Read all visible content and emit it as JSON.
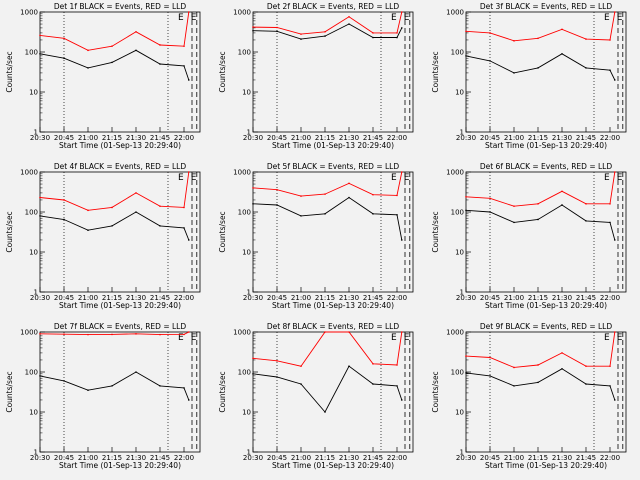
{
  "colors": {
    "events": "#000000",
    "lld": "#ff0000",
    "background": "#f2f2f2"
  },
  "chart_data": [
    {
      "type": "line",
      "title": "Det 1f BLACK = Events, RED = LLD",
      "xlabel": "Start Time (01-Sep-13 20:29:40)",
      "ylabel": "Counts/sec",
      "yscale": "log",
      "ylim": [
        1,
        1000
      ],
      "xticks": [
        "20:30",
        "20:45",
        "21:00",
        "21:15",
        "21:30",
        "21:45",
        "22:00"
      ],
      "yticks": [
        "1",
        "10",
        "100",
        "1000"
      ],
      "markers": [
        {
          "label": "E",
          "time": "21:58"
        },
        {
          "label": "E",
          "time": "22:06"
        }
      ],
      "dotted_lines": [
        "20:45",
        "21:50"
      ],
      "dashed_lines": [
        "22:05",
        "22:08"
      ],
      "series": [
        {
          "color": "#000000",
          "x": [
            "20:30",
            "20:45",
            "21:00",
            "21:15",
            "21:30",
            "21:45",
            "22:00",
            "22:03"
          ],
          "values": [
            90,
            70,
            40,
            55,
            110,
            50,
            45,
            20
          ]
        },
        {
          "color": "#ff0000",
          "x": [
            "20:30",
            "20:45",
            "21:00",
            "21:15",
            "21:30",
            "21:45",
            "22:00",
            "22:03"
          ],
          "values": [
            260,
            220,
            110,
            140,
            320,
            150,
            140,
            1000
          ]
        }
      ]
    },
    {
      "type": "line",
      "title": "Det 2f BLACK = Events, RED = LLD",
      "xlabel": "Start Time (01-Sep-13 20:29:40)",
      "ylabel": "Counts/sec",
      "yscale": "log",
      "ylim": [
        1,
        1000
      ],
      "xticks": [
        "20:30",
        "20:45",
        "21:00",
        "21:15",
        "21:30",
        "21:45",
        "22:00"
      ],
      "yticks": [
        "1",
        "10",
        "100",
        "1000"
      ],
      "markers": [
        {
          "label": "E",
          "time": "21:58"
        },
        {
          "label": "E",
          "time": "22:06"
        }
      ],
      "dotted_lines": [
        "20:45",
        "21:50"
      ],
      "dashed_lines": [
        "22:05",
        "22:08"
      ],
      "series": [
        {
          "color": "#000000",
          "x": [
            "20:30",
            "20:45",
            "21:00",
            "21:15",
            "21:30",
            "21:45",
            "22:00",
            "22:03"
          ],
          "values": [
            340,
            330,
            210,
            250,
            500,
            230,
            230,
            400
          ]
        },
        {
          "color": "#ff0000",
          "x": [
            "20:30",
            "20:45",
            "21:00",
            "21:15",
            "21:30",
            "21:45",
            "22:00",
            "22:03"
          ],
          "values": [
            420,
            410,
            280,
            320,
            760,
            300,
            300,
            1000
          ]
        }
      ]
    },
    {
      "type": "line",
      "title": "Det 3f BLACK = Events, RED = LLD",
      "xlabel": "Start Time (01-Sep-13 20:29:40)",
      "ylabel": "Counts/sec",
      "yscale": "log",
      "ylim": [
        1,
        1000
      ],
      "xticks": [
        "20:30",
        "20:45",
        "21:00",
        "21:15",
        "21:30",
        "21:45",
        "22:00"
      ],
      "yticks": [
        "1",
        "10",
        "100",
        "1000"
      ],
      "markers": [
        {
          "label": "E",
          "time": "21:58"
        },
        {
          "label": "E",
          "time": "22:06"
        }
      ],
      "dotted_lines": [
        "20:45",
        "21:50"
      ],
      "dashed_lines": [
        "22:05",
        "22:08"
      ],
      "series": [
        {
          "color": "#000000",
          "x": [
            "20:30",
            "20:45",
            "21:00",
            "21:15",
            "21:30",
            "21:45",
            "22:00",
            "22:03"
          ],
          "values": [
            80,
            60,
            30,
            40,
            90,
            40,
            35,
            20
          ]
        },
        {
          "color": "#ff0000",
          "x": [
            "20:30",
            "20:45",
            "21:00",
            "21:15",
            "21:30",
            "21:45",
            "22:00",
            "22:03"
          ],
          "values": [
            330,
            300,
            190,
            220,
            370,
            210,
            200,
            1000
          ]
        }
      ]
    },
    {
      "type": "line",
      "title": "Det 4f BLACK = Events, RED = LLD",
      "xlabel": "Start Time (01-Sep-13 20:29:40)",
      "ylabel": "Counts/sec",
      "yscale": "log",
      "ylim": [
        1,
        1000
      ],
      "xticks": [
        "20:30",
        "20:45",
        "21:00",
        "21:15",
        "21:30",
        "21:45",
        "22:00"
      ],
      "yticks": [
        "1",
        "10",
        "100",
        "1000"
      ],
      "markers": [
        {
          "label": "E",
          "time": "21:58"
        },
        {
          "label": "E",
          "time": "22:06"
        }
      ],
      "dotted_lines": [
        "20:45",
        "21:50"
      ],
      "dashed_lines": [
        "22:05",
        "22:08"
      ],
      "series": [
        {
          "color": "#000000",
          "x": [
            "20:30",
            "20:45",
            "21:00",
            "21:15",
            "21:30",
            "21:45",
            "22:00",
            "22:03"
          ],
          "values": [
            80,
            65,
            35,
            45,
            100,
            45,
            40,
            20
          ]
        },
        {
          "color": "#ff0000",
          "x": [
            "20:30",
            "20:45",
            "21:00",
            "21:15",
            "21:30",
            "21:45",
            "22:00",
            "22:03"
          ],
          "values": [
            230,
            200,
            110,
            130,
            300,
            140,
            130,
            1000
          ]
        }
      ]
    },
    {
      "type": "line",
      "title": "Det 5f BLACK = Events, RED = LLD",
      "xlabel": "Start Time (01-Sep-13 20:29:40)",
      "ylabel": "Counts/sec",
      "yscale": "log",
      "ylim": [
        1,
        1000
      ],
      "xticks": [
        "20:30",
        "20:45",
        "21:00",
        "21:15",
        "21:30",
        "21:45",
        "22:00"
      ],
      "yticks": [
        "1",
        "10",
        "100",
        "1000"
      ],
      "markers": [
        {
          "label": "E",
          "time": "21:58"
        },
        {
          "label": "E",
          "time": "22:06"
        }
      ],
      "dotted_lines": [
        "20:45",
        "21:50"
      ],
      "dashed_lines": [
        "22:05",
        "22:08"
      ],
      "series": [
        {
          "color": "#000000",
          "x": [
            "20:30",
            "20:45",
            "21:00",
            "21:15",
            "21:30",
            "21:45",
            "22:00",
            "22:03"
          ],
          "values": [
            160,
            150,
            80,
            90,
            230,
            90,
            85,
            20
          ]
        },
        {
          "color": "#ff0000",
          "x": [
            "20:30",
            "20:45",
            "21:00",
            "21:15",
            "21:30",
            "21:45",
            "22:00",
            "22:03"
          ],
          "values": [
            400,
            360,
            250,
            280,
            520,
            270,
            260,
            1000
          ]
        }
      ]
    },
    {
      "type": "line",
      "title": "Det 6f BLACK = Events, RED = LLD",
      "xlabel": "Start Time (01-Sep-13 20:29:40)",
      "ylabel": "Counts/sec",
      "yscale": "log",
      "ylim": [
        1,
        1000
      ],
      "xticks": [
        "20:30",
        "20:45",
        "21:00",
        "21:15",
        "21:30",
        "21:45",
        "22:00"
      ],
      "yticks": [
        "1",
        "10",
        "100",
        "1000"
      ],
      "markers": [
        {
          "label": "E",
          "time": "21:58"
        },
        {
          "label": "E",
          "time": "22:06"
        }
      ],
      "dotted_lines": [
        "20:45",
        "21:50"
      ],
      "dashed_lines": [
        "22:05",
        "22:08"
      ],
      "series": [
        {
          "color": "#000000",
          "x": [
            "20:30",
            "20:45",
            "21:00",
            "21:15",
            "21:30",
            "21:45",
            "22:00",
            "22:03"
          ],
          "values": [
            110,
            100,
            55,
            65,
            150,
            60,
            55,
            20
          ]
        },
        {
          "color": "#ff0000",
          "x": [
            "20:30",
            "20:45",
            "21:00",
            "21:15",
            "21:30",
            "21:45",
            "22:00",
            "22:03"
          ],
          "values": [
            240,
            220,
            140,
            160,
            330,
            160,
            160,
            1000
          ]
        }
      ]
    },
    {
      "type": "line",
      "title": "Det 7f BLACK = Events, RED = LLD",
      "xlabel": "Start Time (01-Sep-13 20:29:40)",
      "ylabel": "Counts/sec",
      "yscale": "log",
      "ylim": [
        1,
        1000
      ],
      "xticks": [
        "20:30",
        "20:45",
        "21:00",
        "21:15",
        "21:30",
        "21:45",
        "22:00"
      ],
      "yticks": [
        "1",
        "10",
        "100",
        "1000"
      ],
      "markers": [
        {
          "label": "E",
          "time": "21:58"
        },
        {
          "label": "E",
          "time": "22:06"
        }
      ],
      "dotted_lines": [
        "20:45",
        "21:50"
      ],
      "dashed_lines": [
        "22:05",
        "22:08"
      ],
      "series": [
        {
          "color": "#000000",
          "x": [
            "20:30",
            "20:45",
            "21:00",
            "21:15",
            "21:30",
            "21:45",
            "22:00",
            "22:03"
          ],
          "values": [
            80,
            60,
            35,
            45,
            100,
            45,
            40,
            20
          ]
        },
        {
          "color": "#ff0000",
          "x": [
            "20:30",
            "20:45",
            "21:00",
            "21:15",
            "21:30",
            "21:45",
            "22:00",
            "22:03"
          ],
          "values": [
            900,
            880,
            860,
            870,
            900,
            860,
            870,
            1000
          ]
        }
      ]
    },
    {
      "type": "line",
      "title": "Det 8f BLACK = Events, RED = LLD",
      "xlabel": "Start Time (01-Sep-13 20:29:40)",
      "ylabel": "Counts/sec",
      "yscale": "log",
      "ylim": [
        1,
        1000
      ],
      "xticks": [
        "20:30",
        "20:45",
        "21:00",
        "21:15",
        "21:30",
        "21:45",
        "22:00"
      ],
      "yticks": [
        "1",
        "10",
        "100",
        "1000"
      ],
      "markers": [
        {
          "label": "E",
          "time": "21:58"
        },
        {
          "label": "E",
          "time": "22:06"
        }
      ],
      "dotted_lines": [
        "20:45",
        "21:50"
      ],
      "dashed_lines": [
        "22:05",
        "22:08"
      ],
      "series": [
        {
          "color": "#000000",
          "x": [
            "20:30",
            "20:45",
            "21:00",
            "21:15",
            "21:30",
            "21:45",
            "22:00",
            "22:03"
          ],
          "values": [
            90,
            75,
            50,
            10,
            140,
            50,
            45,
            20
          ]
        },
        {
          "color": "#ff0000",
          "x": [
            "20:30",
            "20:45",
            "21:00",
            "21:15",
            "21:30",
            "21:45",
            "22:00",
            "22:03"
          ],
          "values": [
            220,
            190,
            140,
            1000,
            1000,
            160,
            150,
            1000
          ]
        }
      ]
    },
    {
      "type": "line",
      "title": "Det 9f BLACK = Events, RED = LLD",
      "xlabel": "Start Time (01-Sep-13 20:29:40)",
      "ylabel": "Counts/sec",
      "yscale": "log",
      "ylim": [
        1,
        1000
      ],
      "xticks": [
        "20:30",
        "20:45",
        "21:00",
        "21:15",
        "21:30",
        "21:45",
        "22:00"
      ],
      "yticks": [
        "1",
        "10",
        "100",
        "1000"
      ],
      "markers": [
        {
          "label": "E",
          "time": "21:58"
        },
        {
          "label": "E",
          "time": "22:06"
        }
      ],
      "dotted_lines": [
        "20:45",
        "21:50"
      ],
      "dashed_lines": [
        "22:05",
        "22:08"
      ],
      "series": [
        {
          "color": "#000000",
          "x": [
            "20:30",
            "20:45",
            "21:00",
            "21:15",
            "21:30",
            "21:45",
            "22:00",
            "22:03"
          ],
          "values": [
            95,
            80,
            45,
            55,
            120,
            50,
            45,
            20
          ]
        },
        {
          "color": "#ff0000",
          "x": [
            "20:30",
            "20:45",
            "21:00",
            "21:15",
            "21:30",
            "21:45",
            "22:00",
            "22:03"
          ],
          "values": [
            250,
            230,
            130,
            150,
            300,
            140,
            140,
            1000
          ]
        }
      ]
    }
  ]
}
